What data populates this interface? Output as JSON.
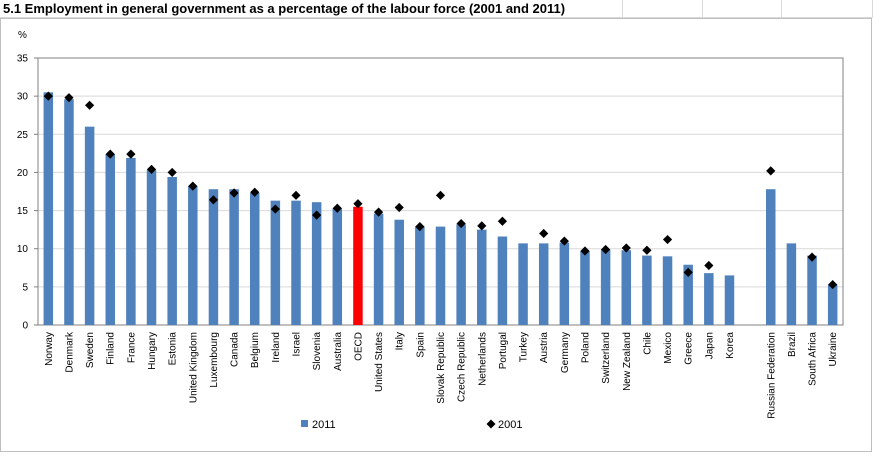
{
  "title": "5.1 Employment in general government as a percentage of the labour force (2001 and 2011)",
  "chart_data": {
    "type": "bar",
    "ylabel": "%",
    "ylim": [
      0,
      35
    ],
    "yticks": [
      "0",
      "5",
      "10",
      "15",
      "20",
      "25",
      "30",
      "35"
    ],
    "grid": true,
    "legend_position": "bottom",
    "categories": [
      "Norway",
      "Denmark",
      "Sweden",
      "Finland",
      "France",
      "Hungary",
      "Estonia",
      "United Kingdom",
      "Luxembourg",
      "Canada",
      "Belgium",
      "Ireland",
      "Israel",
      "Slovenia",
      "Australia",
      "OECD",
      "United States",
      "Italy",
      "Spain",
      "Slovak Republic",
      "Czech Republic",
      "Netherlands",
      "Portugal",
      "Turkey",
      "Austria",
      "Germany",
      "Poland",
      "Switzerland",
      "New Zealand",
      "Chile",
      "Mexico",
      "Greece",
      "Japan",
      "Korea",
      "Russian Federation",
      "Brazil",
      "South Africa",
      "Ukraine"
    ],
    "highlight_category": "OECD",
    "series": [
      {
        "name": "2011",
        "kind": "bar",
        "color": "#4f81bd",
        "highlight_color": "#ff0000",
        "values": [
          30.5,
          29.6,
          26.0,
          22.4,
          21.9,
          20.3,
          19.4,
          18.2,
          17.8,
          17.8,
          17.3,
          16.3,
          16.3,
          16.1,
          15.3,
          15.5,
          14.6,
          13.8,
          12.9,
          12.9,
          13.2,
          12.5,
          11.6,
          10.7,
          10.7,
          10.8,
          9.7,
          9.9,
          9.8,
          9.1,
          9.0,
          7.9,
          6.8,
          6.5,
          17.8,
          10.7,
          9.1,
          5.3
        ]
      },
      {
        "name": "2001",
        "kind": "marker",
        "color": "#000000",
        "values": [
          30.0,
          29.8,
          28.8,
          22.4,
          22.4,
          20.4,
          20.0,
          18.2,
          16.4,
          17.3,
          17.4,
          15.2,
          17.0,
          14.4,
          15.3,
          15.9,
          14.8,
          15.4,
          12.9,
          17.0,
          13.3,
          13.0,
          13.6,
          null,
          12.0,
          11.0,
          9.7,
          9.9,
          10.1,
          9.8,
          11.2,
          6.9,
          7.8,
          null,
          20.2,
          null,
          8.9,
          5.3
        ]
      }
    ]
  }
}
